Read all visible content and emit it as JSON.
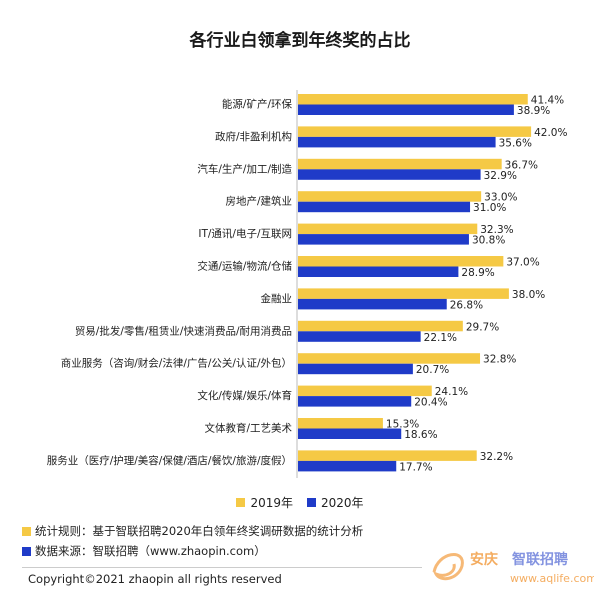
{
  "chart_data": {
    "type": "bar",
    "orientation": "horizontal",
    "title": "各行业白领拿到年终奖的占比",
    "categories": [
      "能源/矿产/环保",
      "政府/非盈利机构",
      "汽车/生产/加工/制造",
      "房地产/建筑业",
      "IT/通讯/电子/互联网",
      "交通/运输/物流/仓储",
      "金融业",
      "贸易/批发/零售/租赁业/快速消费品/耐用消费品",
      "商业服务（咨询/财会/法律/广告/公关/认证/外包）",
      "文化/传媒/娱乐/体育",
      "文体教育/工艺美术",
      "服务业（医疗/护理/美容/保健/酒店/餐饮/旅游/度假）"
    ],
    "series": [
      {
        "name": "2019年",
        "color": "#F5C945",
        "values": [
          41.4,
          42.0,
          36.7,
          33.0,
          32.3,
          37.0,
          38.0,
          29.7,
          32.8,
          24.1,
          15.3,
          32.2
        ],
        "labels": [
          "41.4%",
          "42.0%",
          "36.7%",
          "33.0%",
          "32.3%",
          "37.0%",
          "38.0%",
          "29.7%",
          "32.8%",
          "24.1%",
          "15.3%",
          "32.2%"
        ]
      },
      {
        "name": "2020年",
        "color": "#1F3BC8",
        "values": [
          38.9,
          35.6,
          32.9,
          31.0,
          30.8,
          28.9,
          26.8,
          22.1,
          20.7,
          20.4,
          18.6,
          17.7
        ],
        "labels": [
          "38.9%",
          "35.6%",
          "32.9%",
          "31.0%",
          "30.8%",
          "28.9%",
          "26.8%",
          "22.1%",
          "20.7%",
          "20.4%",
          "18.6%",
          "17.7%"
        ]
      }
    ],
    "value_unit": "%",
    "legend_position": "bottom",
    "grid": false
  },
  "notes": [
    {
      "text": "统计规则：基于智联招聘2020年白领年终奖调研数据的统计分析",
      "color": "#F5C945"
    },
    {
      "text": "数据来源：智联招聘（www.zhaopin.com）",
      "color": "#1F3BC8"
    }
  ],
  "copyright": "Copyright©2021 zhaopin all rights reserved",
  "watermark": {
    "brand": "安庆",
    "brand2": "智联招聘",
    "url": "www.aqlife.com",
    "color": "#F08A1D"
  }
}
